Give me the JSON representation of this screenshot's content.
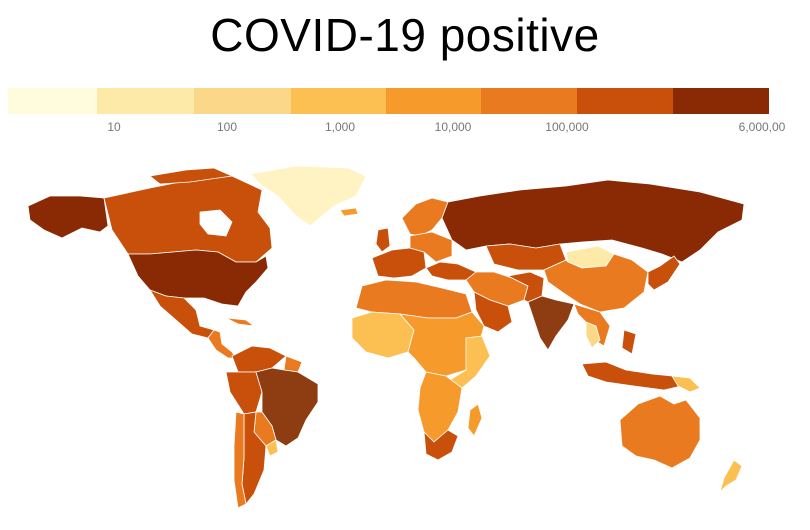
{
  "title": "COVID-19 positive",
  "legend": {
    "colors": [
      "#fffbdc",
      "#fde9a8",
      "#fbd889",
      "#fbbf52",
      "#f79a2c",
      "#ea7a1f",
      "#c9500b",
      "#8a2a05"
    ],
    "ticks": [
      "10",
      "100",
      "1,000",
      "10,000",
      "100,000",
      "6,000,00"
    ]
  },
  "map": {
    "ocean_color": "#ffffff",
    "border_color": "#ffffff"
  }
}
